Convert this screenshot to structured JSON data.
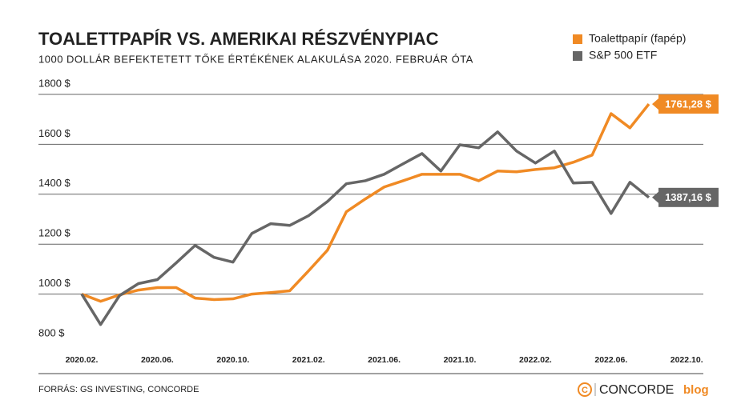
{
  "chart_data": {
    "type": "line",
    "title": "TOALETTPAPÍR VS. AMERIKAI RÉSZVÉNYPIAC",
    "subtitle": "1000 DOLLÁR BEFEKTETETT TŐKE ÉRTÉKÉNEK ALAKULÁSA 2020. FEBRUÁR ÓTA",
    "source": "FORRÁS: GS INVESTING, CONCORDE",
    "brand": "CONCORDE",
    "brand_suffix": "blog",
    "categories": [
      "2020.02.",
      null,
      null,
      null,
      "2020.06.",
      null,
      null,
      null,
      "2020.10.",
      null,
      null,
      null,
      "2021.02.",
      null,
      null,
      null,
      "2021.06.",
      null,
      null,
      null,
      "2021.10.",
      null,
      null,
      null,
      "2022.02.",
      null,
      null,
      null,
      "2022.06.",
      null,
      null,
      null,
      "2022.10."
    ],
    "series": [
      {
        "name": "Toalettpapír (fapép)",
        "color": "#f08a24",
        "values": [
          1000,
          971,
          997,
          1016,
          1026,
          1026,
          984,
          978,
          981,
          1000,
          1006,
          1013,
          1093,
          1176,
          1330,
          1381,
          1429,
          1454,
          1480,
          1480,
          1480,
          1454,
          1493,
          1490,
          1499,
          1506,
          1528,
          1557,
          1723,
          1666,
          1761.28,
          null,
          null
        ],
        "value_labels": [
          null,
          null,
          null,
          null,
          null,
          null,
          null,
          null,
          null,
          null,
          null,
          null,
          null,
          null,
          null,
          null,
          null,
          null,
          null,
          null,
          null,
          null,
          null,
          null,
          null,
          null,
          null,
          null,
          null,
          null,
          "1761,28 $",
          null,
          null
        ]
      },
      {
        "name": "S&P 500 ETF",
        "color": "#666666",
        "values": [
          1000,
          878,
          994,
          1042,
          1058,
          1125,
          1195,
          1147,
          1128,
          1243,
          1282,
          1275,
          1314,
          1371,
          1442,
          1454,
          1480,
          1522,
          1563,
          1493,
          1598,
          1586,
          1650,
          1573,
          1525,
          1573,
          1445,
          1448,
          1323,
          1448,
          1387.16,
          null,
          null
        ],
        "value_labels": [
          null,
          null,
          null,
          null,
          null,
          null,
          null,
          null,
          null,
          null,
          null,
          null,
          null,
          null,
          null,
          null,
          null,
          null,
          null,
          null,
          null,
          null,
          null,
          null,
          null,
          null,
          null,
          null,
          null,
          null,
          "1387,16 $",
          null,
          null
        ]
      }
    ],
    "ylim": [
      800,
      1800
    ],
    "yticks": [
      {
        "value": 800,
        "label": "800 $"
      },
      {
        "value": 1000,
        "label": "1000 $"
      },
      {
        "value": 1200,
        "label": "1200 $"
      },
      {
        "value": 1400,
        "label": "1400 $"
      },
      {
        "value": 1600,
        "label": "1600 $"
      },
      {
        "value": 1800,
        "label": "1800 $"
      }
    ],
    "grid": true,
    "legend": "top-right"
  }
}
